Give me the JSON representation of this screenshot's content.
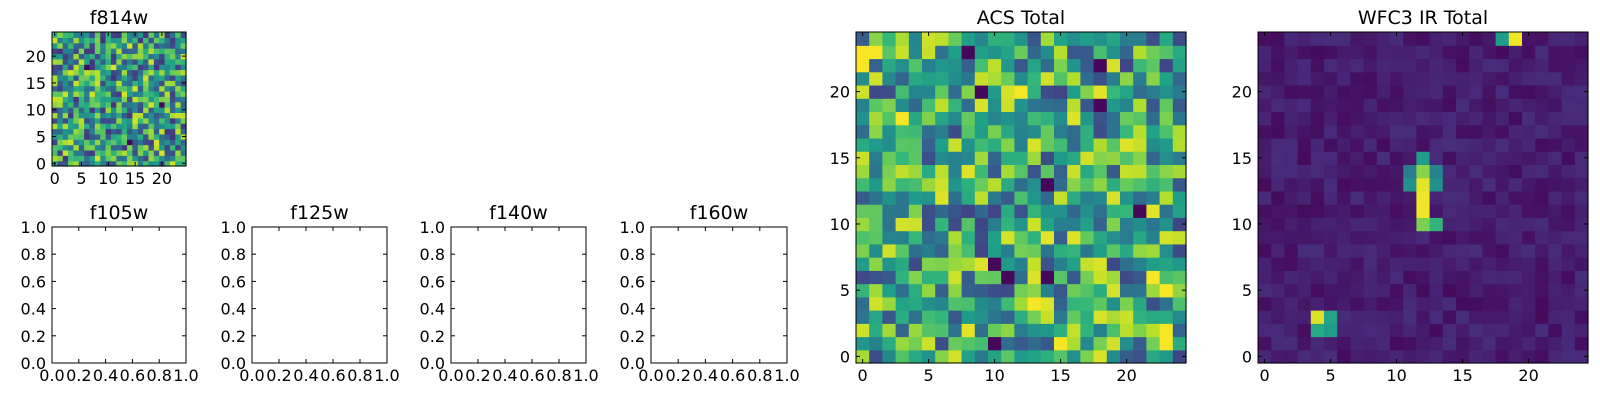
{
  "chart_data": [
    {
      "id": "f814w",
      "type": "heatmap",
      "title": "f814w",
      "cmap": "viridis",
      "grid_size": 25,
      "xlim": [
        -0.5,
        24.5
      ],
      "ylim": [
        -0.5,
        24.5
      ],
      "xticks": [
        0,
        5,
        10,
        15,
        20
      ],
      "yticks": [
        0,
        5,
        10,
        15,
        20
      ],
      "xticklabels": [
        "0",
        "5",
        "10",
        "15",
        "20"
      ],
      "yticklabels": [
        "0",
        "5",
        "10",
        "15",
        "20"
      ],
      "pattern": "noise",
      "seed": 814,
      "base": 0.55,
      "amp": 0.4,
      "dark": [
        [
          6,
          18
        ],
        [
          14,
          4
        ],
        [
          20,
          11
        ]
      ]
    },
    {
      "id": "f105w",
      "type": "empty",
      "title": "f105w",
      "xlim": [
        0.0,
        1.0
      ],
      "ylim": [
        0.0,
        1.0
      ],
      "xticklabels": [
        "0.0",
        "0.2",
        "0.4",
        "0.6",
        "0.8",
        "1.0"
      ],
      "yticklabels": [
        "0.0",
        "0.2",
        "0.4",
        "0.6",
        "0.8",
        "1.0"
      ]
    },
    {
      "id": "f125w",
      "type": "empty",
      "title": "f125w",
      "xlim": [
        0.0,
        1.0
      ],
      "ylim": [
        0.0,
        1.0
      ],
      "xticklabels": [
        "0.0",
        "0.2",
        "0.4",
        "0.6",
        "0.8",
        "1.0"
      ],
      "yticklabels": [
        "0.0",
        "0.2",
        "0.4",
        "0.6",
        "0.8",
        "1.0"
      ]
    },
    {
      "id": "f140w",
      "type": "empty",
      "title": "f140w",
      "xlim": [
        0.0,
        1.0
      ],
      "ylim": [
        0.0,
        1.0
      ],
      "xticklabels": [
        "0.0",
        "0.2",
        "0.4",
        "0.6",
        "0.8",
        "1.0"
      ],
      "yticklabels": [
        "0.0",
        "0.2",
        "0.4",
        "0.6",
        "0.8",
        "1.0"
      ]
    },
    {
      "id": "f160w",
      "type": "empty",
      "title": "f160w",
      "xlim": [
        0.0,
        1.0
      ],
      "ylim": [
        0.0,
        1.0
      ],
      "xticklabels": [
        "0.0",
        "0.2",
        "0.4",
        "0.6",
        "0.8",
        "1.0"
      ],
      "yticklabels": [
        "0.0",
        "0.2",
        "0.4",
        "0.6",
        "0.8",
        "1.0"
      ]
    },
    {
      "id": "acs-total",
      "type": "heatmap",
      "title": "ACS Total",
      "cmap": "viridis",
      "grid_size": 25,
      "xlim": [
        -0.5,
        24.5
      ],
      "ylim": [
        -0.5,
        24.5
      ],
      "xticks": [
        0,
        5,
        10,
        15,
        20
      ],
      "yticks": [
        0,
        5,
        10,
        15,
        20
      ],
      "xticklabels": [
        "0",
        "5",
        "10",
        "15",
        "20"
      ],
      "yticklabels": [
        "0",
        "5",
        "10",
        "15",
        "20"
      ],
      "pattern": "noise",
      "seed": 4242,
      "base": 0.58,
      "amp": 0.38,
      "dark": [
        [
          8,
          23
        ],
        [
          18,
          22
        ],
        [
          9,
          20
        ],
        [
          18,
          19
        ],
        [
          14,
          13
        ],
        [
          21,
          11
        ],
        [
          10,
          7
        ],
        [
          11,
          6
        ],
        [
          14,
          6
        ],
        [
          10,
          1
        ]
      ],
      "bright": [
        [
          0,
          23
        ],
        [
          0,
          22
        ],
        [
          1,
          23
        ],
        [
          3,
          18
        ],
        [
          12,
          20
        ],
        [
          22,
          6
        ],
        [
          23,
          5
        ],
        [
          13,
          4
        ],
        [
          23,
          2
        ],
        [
          23,
          1
        ],
        [
          15,
          1
        ]
      ]
    },
    {
      "id": "wfc3-ir-total",
      "type": "heatmap",
      "title": "WFC3 IR Total",
      "cmap": "viridis",
      "grid_size": 25,
      "xlim": [
        -0.5,
        24.5
      ],
      "ylim": [
        -0.5,
        24.5
      ],
      "xticks": [
        0,
        5,
        10,
        15,
        20
      ],
      "yticks": [
        0,
        5,
        10,
        15,
        20
      ],
      "xticklabels": [
        "0",
        "5",
        "10",
        "15",
        "20"
      ],
      "yticklabels": [
        "0",
        "5",
        "10",
        "15",
        "20"
      ],
      "pattern": "sources",
      "seed": 1600,
      "base": 0.08,
      "amp": 0.1,
      "sources": [
        {
          "x": 12,
          "y": 11,
          "value": 0.98
        },
        {
          "x": 12,
          "y": 12,
          "value": 0.98
        },
        {
          "x": 12,
          "y": 13,
          "value": 0.96
        },
        {
          "x": 12,
          "y": 14,
          "value": 0.82
        },
        {
          "x": 12,
          "y": 15,
          "value": 0.55
        },
        {
          "x": 12,
          "y": 10,
          "value": 0.8
        },
        {
          "x": 13,
          "y": 10,
          "value": 0.65
        },
        {
          "x": 13,
          "y": 13,
          "value": 0.5
        },
        {
          "x": 11,
          "y": 13,
          "value": 0.5
        },
        {
          "x": 13,
          "y": 14,
          "value": 0.45
        },
        {
          "x": 11,
          "y": 14,
          "value": 0.42
        },
        {
          "x": 4,
          "y": 3,
          "value": 0.95
        },
        {
          "x": 5,
          "y": 3,
          "value": 0.58
        },
        {
          "x": 4,
          "y": 2,
          "value": 0.6
        },
        {
          "x": 5,
          "y": 2,
          "value": 0.55
        },
        {
          "x": 18,
          "y": 24,
          "value": 0.55
        },
        {
          "x": 19,
          "y": 24,
          "value": 0.98
        }
      ]
    }
  ]
}
